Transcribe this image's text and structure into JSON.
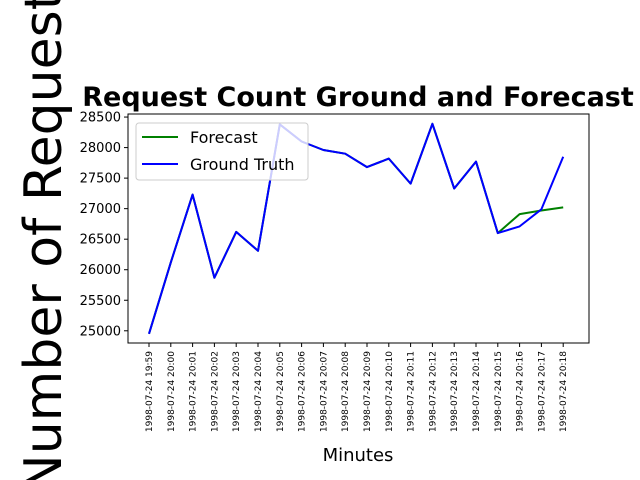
{
  "chart_data": {
    "type": "line",
    "title": "Request Count Ground and Forecast",
    "xlabel": "Minutes",
    "ylabel": "Number of Requests",
    "categories": [
      "1998-07-24 19:59",
      "1998-07-24 20:00",
      "1998-07-24 20:01",
      "1998-07-24 20:02",
      "1998-07-24 20:03",
      "1998-07-24 20:04",
      "1998-07-24 20:05",
      "1998-07-24 20:06",
      "1998-07-24 20:07",
      "1998-07-24 20:08",
      "1998-07-24 20:09",
      "1998-07-24 20:10",
      "1998-07-24 20:11",
      "1998-07-24 20:12",
      "1998-07-24 20:13",
      "1998-07-24 20:14",
      "1998-07-24 20:15",
      "1998-07-24 20:16",
      "1998-07-24 20:17",
      "1998-07-24 20:18"
    ],
    "ylim": [
      24800,
      28550
    ],
    "yticks": [
      25000,
      25500,
      26000,
      26500,
      27000,
      27500,
      28000,
      28500
    ],
    "grid": false,
    "legend_position": "top-left",
    "series": [
      {
        "name": "Forecast",
        "color": "#008000",
        "values": [
          24950,
          26120,
          27230,
          25870,
          26620,
          26310,
          28380,
          28100,
          27960,
          27900,
          27680,
          27820,
          27410,
          28390,
          27330,
          27770,
          26600,
          26910,
          26970,
          27020
        ]
      },
      {
        "name": "Ground Truth",
        "color": "#0000ff",
        "values": [
          24950,
          26120,
          27230,
          25870,
          26620,
          26310,
          28380,
          28100,
          27960,
          27900,
          27680,
          27820,
          27410,
          28390,
          27330,
          27770,
          26600,
          26710,
          26990,
          27850
        ]
      }
    ]
  }
}
